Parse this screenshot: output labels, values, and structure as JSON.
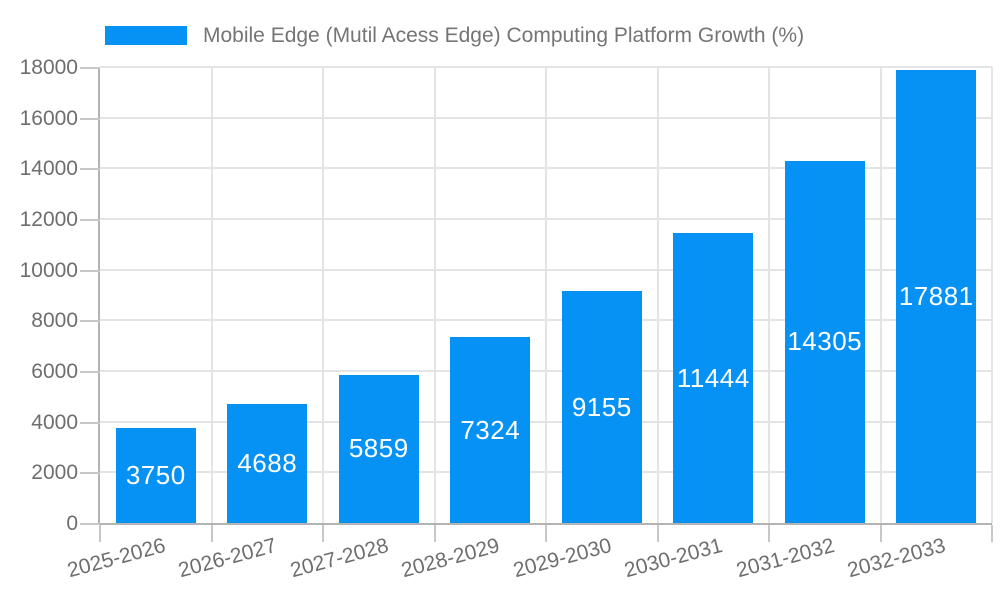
{
  "legend": {
    "label": "Mobile Edge (Mutil Acess Edge) Computing Platform Growth (%)"
  },
  "chart_data": {
    "type": "bar",
    "title": "Mobile Edge (Mutil Acess Edge) Computing Platform Growth (%)",
    "categories": [
      "2025-2026",
      "2026-2027",
      "2027-2028",
      "2028-2029",
      "2029-2030",
      "2030-2031",
      "2031-2032",
      "2032-2033"
    ],
    "series": [
      {
        "name": "Mobile Edge (Mutil Acess Edge) Computing Platform Growth (%)",
        "values": [
          3750,
          4688,
          5859,
          7324,
          9155,
          11444,
          14305,
          17881
        ]
      }
    ],
    "value_labels_shown": true,
    "xlabel": "",
    "ylabel": "",
    "ylim": [
      0,
      18000
    ],
    "ytick_step": 2000,
    "ytick_labels": [
      "0",
      "2000",
      "4000",
      "6000",
      "8000",
      "10000",
      "12000",
      "14000",
      "16000",
      "18000"
    ],
    "grid": true,
    "legend_position": "top-left",
    "colors": {
      "bar": "#0692f4",
      "value_label": "#ffffff",
      "grid": "#e4e4e4",
      "axis": "#b3b3b3",
      "tick": "#c7c7c7",
      "tick_label": "#6e6e6e",
      "legend_text": "#757575",
      "background": "#ffffff"
    }
  }
}
